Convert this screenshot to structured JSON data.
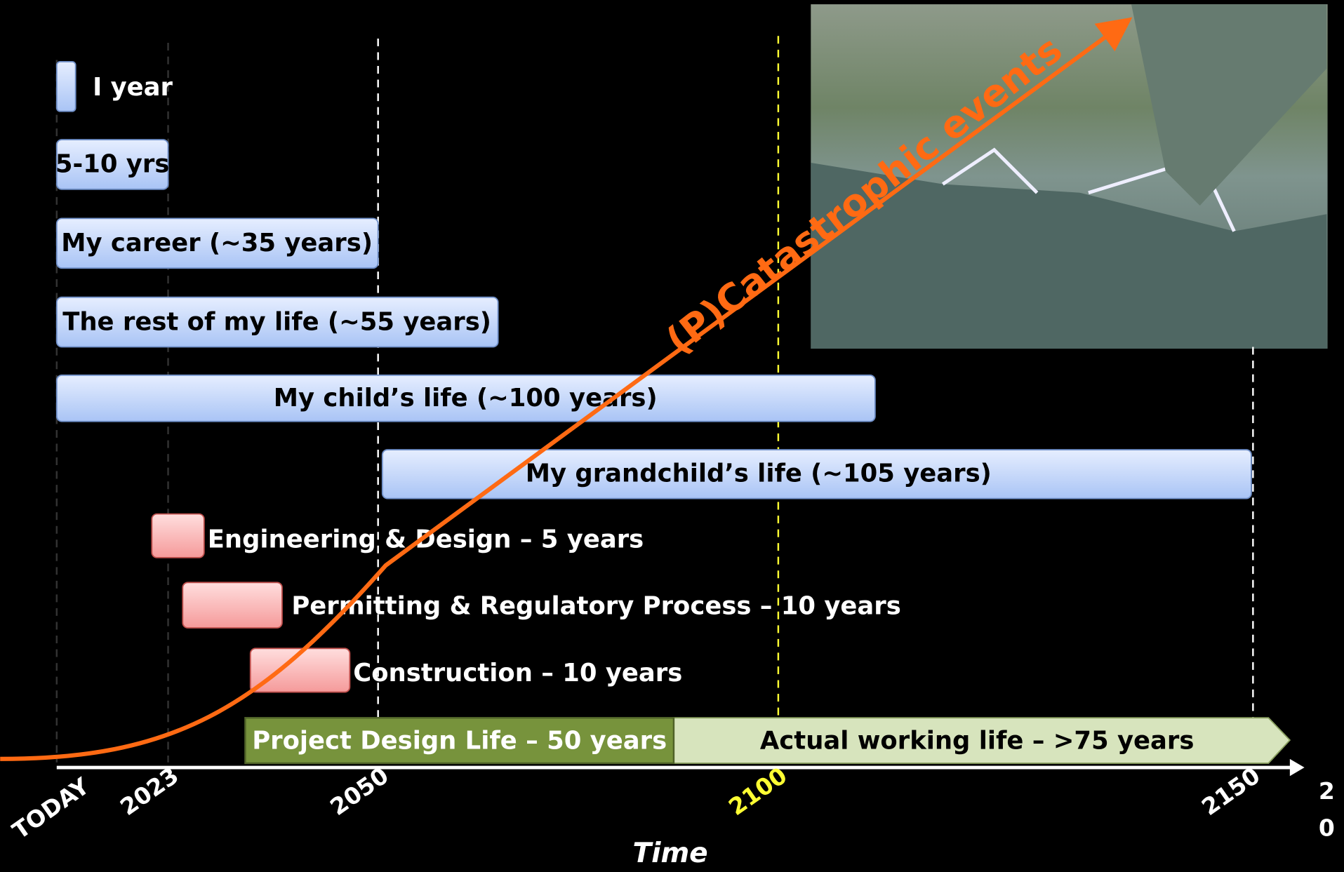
{
  "bars": [
    "I year",
    "5-10 yrs",
    "My career (~35 years)",
    "The rest of my life (~55 years)",
    "My child’s life (~100 years)",
    "My grandchild’s life (~105 years)"
  ],
  "phases": [
    "Engineering & Design – 5 years",
    "Permitting & Regulatory Process – 10 years",
    "Construction – 10 years"
  ],
  "life": {
    "design": "Project Design Life – 50 years",
    "actual": "Actual working life – >75 years"
  },
  "curve_label": "(P)Catastrophic events",
  "axis": {
    "title": "Time",
    "ticks": [
      "TODAY",
      "2023",
      "2050",
      "2100",
      "2150"
    ],
    "cut": [
      "2",
      "0"
    ]
  }
}
